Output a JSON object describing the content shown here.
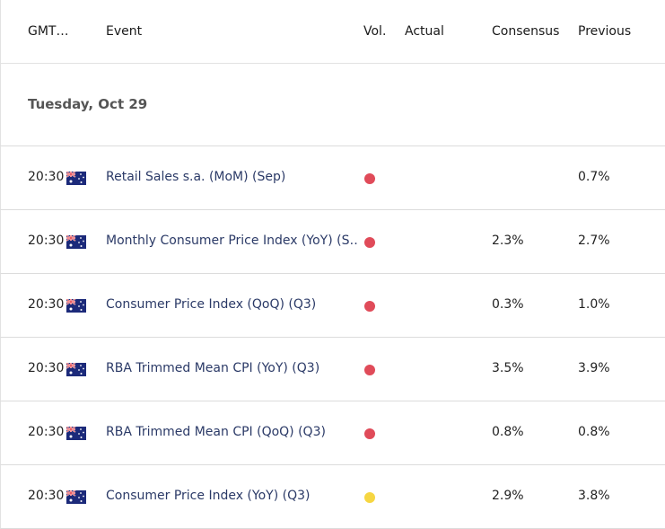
{
  "header": {
    "gmt": "GMT…",
    "event": "Event",
    "vol": "Vol.",
    "actual": "Actual",
    "consensus": "Consensus",
    "previous": "Previous"
  },
  "day": "Tuesday, Oct 29",
  "colors": {
    "high": "#e04b59",
    "medium": "#f6d642"
  },
  "flag_icon": "australia-flag-icon",
  "events": [
    {
      "time": "20:30",
      "event": "Retail Sales s.a. (MoM) (Sep)",
      "volatility": "high",
      "actual": "",
      "consensus": "",
      "previous": "0.7%"
    },
    {
      "time": "20:30",
      "event": "Monthly Consumer Price Index (YoY) (S…",
      "volatility": "high",
      "actual": "",
      "consensus": "2.3%",
      "previous": "2.7%"
    },
    {
      "time": "20:30",
      "event": "Consumer Price Index (QoQ) (Q3)",
      "volatility": "high",
      "actual": "",
      "consensus": "0.3%",
      "previous": "1.0%"
    },
    {
      "time": "20:30",
      "event": "RBA Trimmed Mean CPI (YoY) (Q3)",
      "volatility": "high",
      "actual": "",
      "consensus": "3.5%",
      "previous": "3.9%"
    },
    {
      "time": "20:30",
      "event": "RBA Trimmed Mean CPI (QoQ) (Q3)",
      "volatility": "high",
      "actual": "",
      "consensus": "0.8%",
      "previous": "0.8%"
    },
    {
      "time": "20:30",
      "event": "Consumer Price Index (YoY) (Q3)",
      "volatility": "medium",
      "actual": "",
      "consensus": "2.9%",
      "previous": "3.8%"
    }
  ]
}
